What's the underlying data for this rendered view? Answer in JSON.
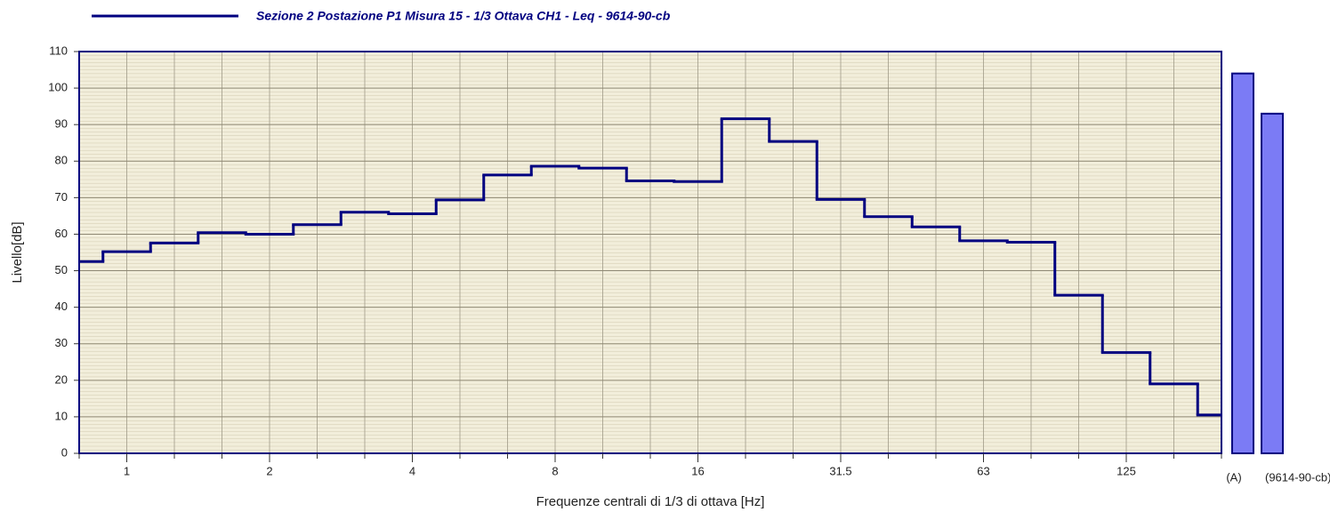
{
  "chart_data": [
    {
      "type": "step",
      "series": [
        {
          "name": "Sezione 2 Postazione P1 Misura 15 - 1/3 Ottava CH1 - Leq - 9614-90-cb",
          "color": "#000080",
          "values": [
            52.5,
            55.2,
            57.6,
            60.4,
            60.0,
            62.6,
            66.0,
            65.6,
            69.4,
            76.2,
            78.6,
            78.1,
            74.6,
            74.4,
            91.6,
            85.4,
            69.5,
            64.8,
            62.0,
            58.2,
            57.8,
            43.3,
            27.6,
            19.0,
            10.5
          ]
        }
      ],
      "categories": [
        null,
        "1",
        null,
        null,
        "2",
        null,
        null,
        "4",
        null,
        null,
        "8",
        null,
        null,
        "16",
        null,
        null,
        "31.5",
        null,
        null,
        "63",
        null,
        null,
        "125",
        null,
        null
      ],
      "x_label": "Frequenze centrali di 1/3 di ottava [Hz]",
      "y_label": "Livello[dB]",
      "ylim": [
        0,
        110
      ],
      "yticks": [
        0,
        10,
        20,
        30,
        40,
        50,
        60,
        70,
        80,
        90,
        100,
        110
      ],
      "grid": true
    },
    {
      "type": "bar",
      "categories": [
        "(A)",
        "(9614-90-cb)"
      ],
      "values": [
        104,
        93
      ],
      "color": "#7b7bf5"
    }
  ]
}
